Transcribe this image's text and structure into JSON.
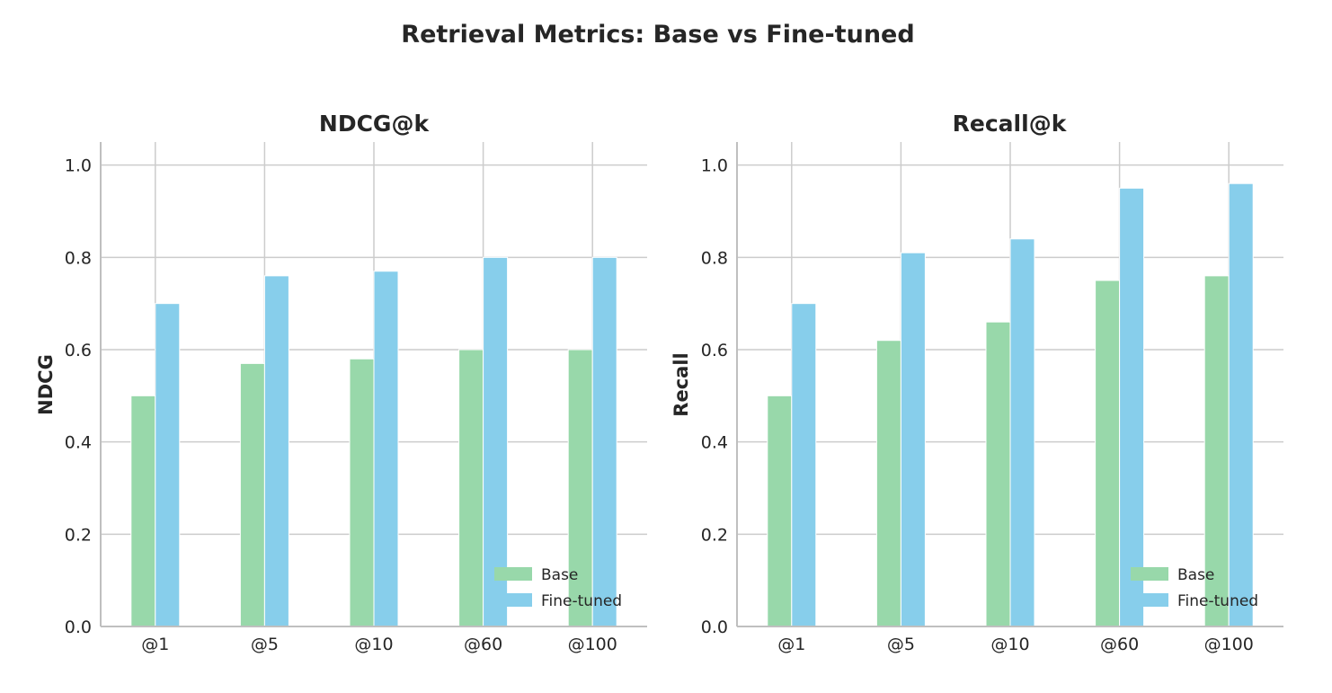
{
  "figure": {
    "title": "Retrieval Metrics: Base vs Fine-tuned"
  },
  "colors": {
    "base": "#98d8aa",
    "finetuned": "#87ceeb",
    "grid": "#cccccc",
    "text": "#262626",
    "spine": "#bfbfbf"
  },
  "chart_data": [
    {
      "type": "bar",
      "title": "NDCG@k",
      "xlabel": "",
      "ylabel": "NDCG",
      "categories": [
        "@1",
        "@5",
        "@10",
        "@60",
        "@100"
      ],
      "series": [
        {
          "name": "Base",
          "values": [
            0.5,
            0.57,
            0.58,
            0.6,
            0.6
          ]
        },
        {
          "name": "Fine-tuned",
          "values": [
            0.7,
            0.76,
            0.77,
            0.8,
            0.8
          ]
        }
      ],
      "ylim": [
        0,
        1.05
      ],
      "yticks": [
        "0.0",
        "0.2",
        "0.4",
        "0.6",
        "0.8",
        "1.0"
      ],
      "grid": true,
      "legend": "lower right"
    },
    {
      "type": "bar",
      "title": "Recall@k",
      "xlabel": "",
      "ylabel": "Recall",
      "categories": [
        "@1",
        "@5",
        "@10",
        "@60",
        "@100"
      ],
      "series": [
        {
          "name": "Base",
          "values": [
            0.5,
            0.62,
            0.66,
            0.75,
            0.76
          ]
        },
        {
          "name": "Fine-tuned",
          "values": [
            0.7,
            0.81,
            0.84,
            0.95,
            0.96
          ]
        }
      ],
      "ylim": [
        0,
        1.05
      ],
      "yticks": [
        "0.0",
        "0.2",
        "0.4",
        "0.6",
        "0.8",
        "1.0"
      ],
      "grid": true,
      "legend": "lower right"
    }
  ]
}
